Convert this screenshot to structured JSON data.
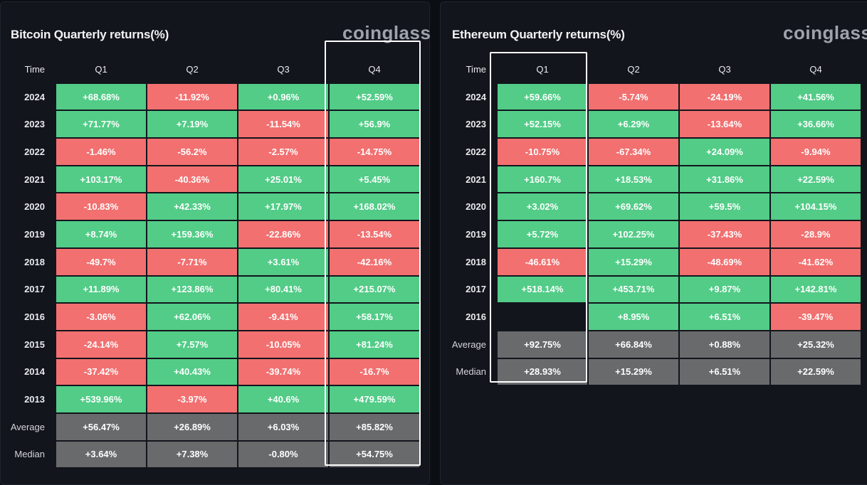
{
  "btc": {
    "title": "Bitcoin Quarterly returns(%)",
    "brand": "coinglass",
    "columns": [
      "Time",
      "Q1",
      "Q2",
      "Q3",
      "Q4"
    ],
    "highlighted_column": "Q4",
    "rows": [
      {
        "label": "2024",
        "cells": [
          {
            "v": "+68.68%",
            "s": "pos"
          },
          {
            "v": "-11.92%",
            "s": "neg"
          },
          {
            "v": "+0.96%",
            "s": "pos"
          },
          {
            "v": "+52.59%",
            "s": "pos"
          }
        ]
      },
      {
        "label": "2023",
        "cells": [
          {
            "v": "+71.77%",
            "s": "pos"
          },
          {
            "v": "+7.19%",
            "s": "pos"
          },
          {
            "v": "-11.54%",
            "s": "neg"
          },
          {
            "v": "+56.9%",
            "s": "pos"
          }
        ]
      },
      {
        "label": "2022",
        "cells": [
          {
            "v": "-1.46%",
            "s": "neg"
          },
          {
            "v": "-56.2%",
            "s": "neg"
          },
          {
            "v": "-2.57%",
            "s": "neg"
          },
          {
            "v": "-14.75%",
            "s": "neg"
          }
        ]
      },
      {
        "label": "2021",
        "cells": [
          {
            "v": "+103.17%",
            "s": "pos"
          },
          {
            "v": "-40.36%",
            "s": "neg"
          },
          {
            "v": "+25.01%",
            "s": "pos"
          },
          {
            "v": "+5.45%",
            "s": "pos"
          }
        ]
      },
      {
        "label": "2020",
        "cells": [
          {
            "v": "-10.83%",
            "s": "neg"
          },
          {
            "v": "+42.33%",
            "s": "pos"
          },
          {
            "v": "+17.97%",
            "s": "pos"
          },
          {
            "v": "+168.02%",
            "s": "pos"
          }
        ]
      },
      {
        "label": "2019",
        "cells": [
          {
            "v": "+8.74%",
            "s": "pos"
          },
          {
            "v": "+159.36%",
            "s": "pos"
          },
          {
            "v": "-22.86%",
            "s": "neg"
          },
          {
            "v": "-13.54%",
            "s": "neg"
          }
        ]
      },
      {
        "label": "2018",
        "cells": [
          {
            "v": "-49.7%",
            "s": "neg"
          },
          {
            "v": "-7.71%",
            "s": "neg"
          },
          {
            "v": "+3.61%",
            "s": "pos"
          },
          {
            "v": "-42.16%",
            "s": "neg"
          }
        ]
      },
      {
        "label": "2017",
        "cells": [
          {
            "v": "+11.89%",
            "s": "pos"
          },
          {
            "v": "+123.86%",
            "s": "pos"
          },
          {
            "v": "+80.41%",
            "s": "pos"
          },
          {
            "v": "+215.07%",
            "s": "pos"
          }
        ]
      },
      {
        "label": "2016",
        "cells": [
          {
            "v": "-3.06%",
            "s": "neg"
          },
          {
            "v": "+62.06%",
            "s": "pos"
          },
          {
            "v": "-9.41%",
            "s": "neg"
          },
          {
            "v": "+58.17%",
            "s": "pos"
          }
        ]
      },
      {
        "label": "2015",
        "cells": [
          {
            "v": "-24.14%",
            "s": "neg"
          },
          {
            "v": "+7.57%",
            "s": "pos"
          },
          {
            "v": "-10.05%",
            "s": "neg"
          },
          {
            "v": "+81.24%",
            "s": "pos"
          }
        ]
      },
      {
        "label": "2014",
        "cells": [
          {
            "v": "-37.42%",
            "s": "neg"
          },
          {
            "v": "+40.43%",
            "s": "pos"
          },
          {
            "v": "-39.74%",
            "s": "neg"
          },
          {
            "v": "-16.7%",
            "s": "neg"
          }
        ]
      },
      {
        "label": "2013",
        "cells": [
          {
            "v": "+539.96%",
            "s": "pos"
          },
          {
            "v": "-3.97%",
            "s": "neg"
          },
          {
            "v": "+40.6%",
            "s": "pos"
          },
          {
            "v": "+479.59%",
            "s": "pos"
          }
        ]
      },
      {
        "label": "Average",
        "stat": true,
        "cells": [
          {
            "v": "+56.47%",
            "s": "stat"
          },
          {
            "v": "+26.89%",
            "s": "stat"
          },
          {
            "v": "+6.03%",
            "s": "stat"
          },
          {
            "v": "+85.82%",
            "s": "stat"
          }
        ]
      },
      {
        "label": "Median",
        "stat": true,
        "cells": [
          {
            "v": "+3.64%",
            "s": "stat"
          },
          {
            "v": "+7.38%",
            "s": "stat"
          },
          {
            "v": "-0.80%",
            "s": "stat"
          },
          {
            "v": "+54.75%",
            "s": "stat"
          }
        ]
      }
    ]
  },
  "eth": {
    "title": "Ethereum Quarterly returns(%)",
    "brand": "coinglass",
    "columns": [
      "Time",
      "Q1",
      "Q2",
      "Q3",
      "Q4"
    ],
    "highlighted_column": "Q1",
    "rows": [
      {
        "label": "2024",
        "cells": [
          {
            "v": "+59.66%",
            "s": "pos"
          },
          {
            "v": "-5.74%",
            "s": "neg"
          },
          {
            "v": "-24.19%",
            "s": "neg"
          },
          {
            "v": "+41.56%",
            "s": "pos"
          }
        ]
      },
      {
        "label": "2023",
        "cells": [
          {
            "v": "+52.15%",
            "s": "pos"
          },
          {
            "v": "+6.29%",
            "s": "pos"
          },
          {
            "v": "-13.64%",
            "s": "neg"
          },
          {
            "v": "+36.66%",
            "s": "pos"
          }
        ]
      },
      {
        "label": "2022",
        "cells": [
          {
            "v": "-10.75%",
            "s": "neg"
          },
          {
            "v": "-67.34%",
            "s": "neg"
          },
          {
            "v": "+24.09%",
            "s": "pos"
          },
          {
            "v": "-9.94%",
            "s": "neg"
          }
        ]
      },
      {
        "label": "2021",
        "cells": [
          {
            "v": "+160.7%",
            "s": "pos"
          },
          {
            "v": "+18.53%",
            "s": "pos"
          },
          {
            "v": "+31.86%",
            "s": "pos"
          },
          {
            "v": "+22.59%",
            "s": "pos"
          }
        ]
      },
      {
        "label": "2020",
        "cells": [
          {
            "v": "+3.02%",
            "s": "pos"
          },
          {
            "v": "+69.62%",
            "s": "pos"
          },
          {
            "v": "+59.5%",
            "s": "pos"
          },
          {
            "v": "+104.15%",
            "s": "pos"
          }
        ]
      },
      {
        "label": "2019",
        "cells": [
          {
            "v": "+5.72%",
            "s": "pos"
          },
          {
            "v": "+102.25%",
            "s": "pos"
          },
          {
            "v": "-37.43%",
            "s": "neg"
          },
          {
            "v": "-28.9%",
            "s": "neg"
          }
        ]
      },
      {
        "label": "2018",
        "cells": [
          {
            "v": "-46.61%",
            "s": "neg"
          },
          {
            "v": "+15.29%",
            "s": "pos"
          },
          {
            "v": "-48.69%",
            "s": "neg"
          },
          {
            "v": "-41.62%",
            "s": "neg"
          }
        ]
      },
      {
        "label": "2017",
        "cells": [
          {
            "v": "+518.14%",
            "s": "pos"
          },
          {
            "v": "+453.71%",
            "s": "pos"
          },
          {
            "v": "+9.87%",
            "s": "pos"
          },
          {
            "v": "+142.81%",
            "s": "pos"
          }
        ]
      },
      {
        "label": "2016",
        "cells": [
          {
            "v": "",
            "s": "empty"
          },
          {
            "v": "+8.95%",
            "s": "pos"
          },
          {
            "v": "+6.51%",
            "s": "pos"
          },
          {
            "v": "-39.47%",
            "s": "neg"
          }
        ]
      },
      {
        "label": "Average",
        "stat": true,
        "cells": [
          {
            "v": "+92.75%",
            "s": "stat"
          },
          {
            "v": "+66.84%",
            "s": "stat"
          },
          {
            "v": "+0.88%",
            "s": "stat"
          },
          {
            "v": "+25.32%",
            "s": "stat"
          }
        ]
      },
      {
        "label": "Median",
        "stat": true,
        "cells": [
          {
            "v": "+28.93%",
            "s": "stat"
          },
          {
            "v": "+15.29%",
            "s": "stat"
          },
          {
            "v": "+6.51%",
            "s": "stat"
          },
          {
            "v": "+22.59%",
            "s": "stat"
          }
        ]
      }
    ]
  },
  "colors": {
    "positive": "#52cc87",
    "negative": "#f27070",
    "statistic": "#696a6c",
    "background": "#12151c",
    "highlight_border": "#ffffff"
  }
}
